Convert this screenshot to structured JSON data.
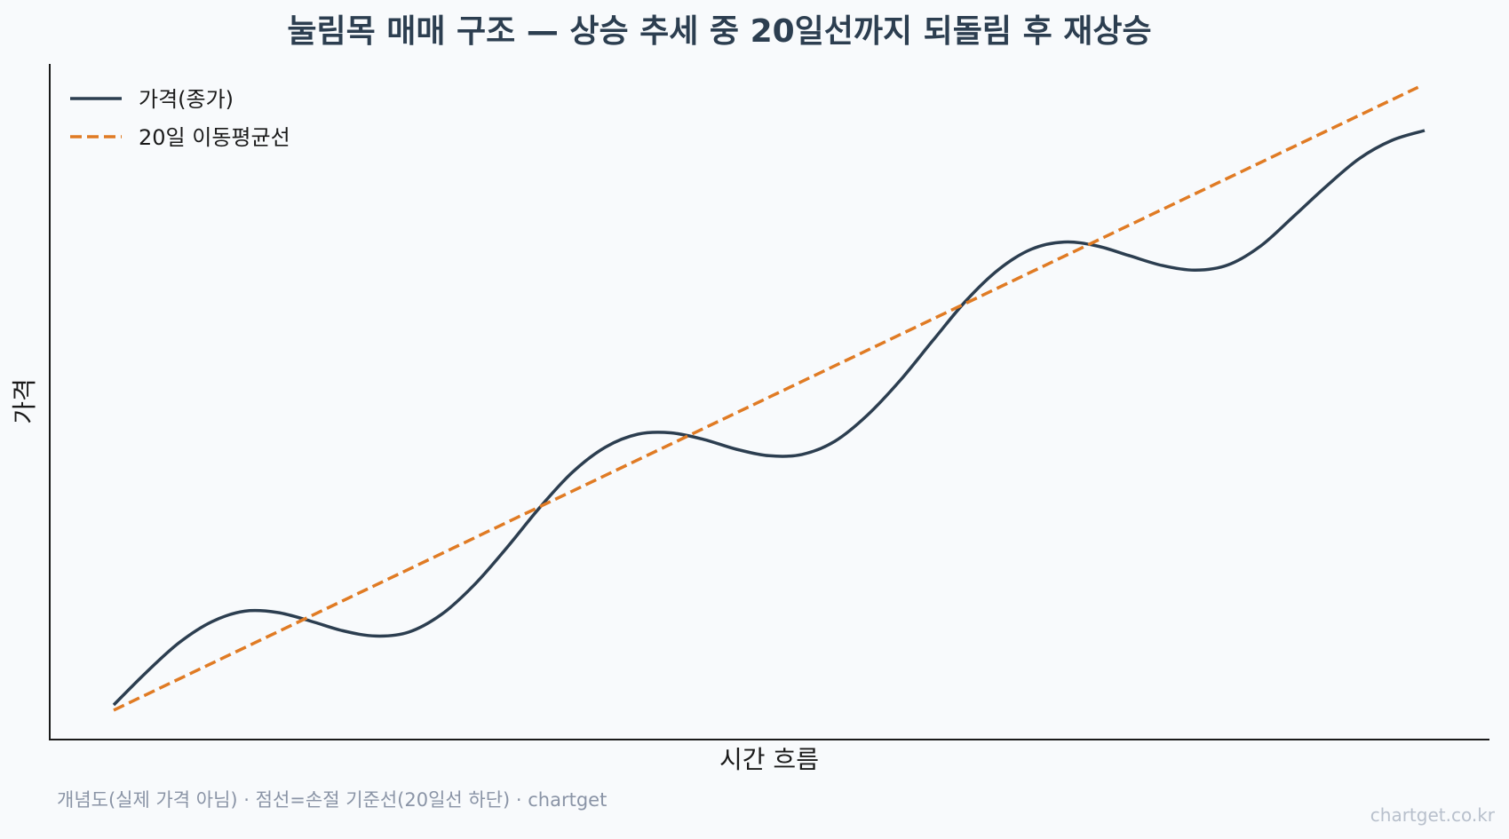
{
  "chart_data": {
    "type": "line",
    "title": "눌림목 매매 구조 — 상승 추세 중 20일선까지 되돌림 후 재상승",
    "xlabel": "시간 흐름",
    "ylabel": "가격",
    "x_ticks_shown": false,
    "y_ticks_shown": false,
    "grid": false,
    "legend_position": "top-left",
    "xlim": [
      0,
      100
    ],
    "ylim": [
      -6,
      111
    ],
    "x": [
      0,
      2.5,
      5,
      7.5,
      10,
      12.5,
      15,
      17.5,
      20,
      22.5,
      25,
      27.5,
      30,
      32.5,
      35,
      37.5,
      40,
      42.5,
      45,
      47.5,
      50,
      52.5,
      55,
      57.5,
      60,
      62.5,
      65,
      67.5,
      70,
      72.5,
      75,
      77.5,
      80,
      82.5,
      85,
      87.5,
      90,
      92.5,
      95,
      97.5,
      100
    ],
    "series": [
      {
        "name": "가격(종가)",
        "style": "solid",
        "color": "#2c3e50",
        "values": [
          0.0,
          5.0,
          9.5,
          12.7,
          14.3,
          14.1,
          12.8,
          11.3,
          10.5,
          11.1,
          13.8,
          18.3,
          24.0,
          30.1,
          35.5,
          39.3,
          41.3,
          41.5,
          40.5,
          39.0,
          38.0,
          38.2,
          40.2,
          44.2,
          49.5,
          55.6,
          61.6,
          66.4,
          69.5,
          70.6,
          70.0,
          68.5,
          67.0,
          66.3,
          67.1,
          70.0,
          74.5,
          79.1,
          83.3,
          86.1,
          87.6
        ]
      },
      {
        "name": "20일 이동평균선",
        "style": "dashed",
        "color": "#e07b24",
        "x": [
          0,
          99.5
        ],
        "values": [
          -0.8,
          94.2
        ]
      }
    ]
  },
  "footnote": "개념도(실제 가격 아님) · 점선=손절 기준선(20일선 하단) · chartget",
  "watermark": "chartget.co.kr"
}
